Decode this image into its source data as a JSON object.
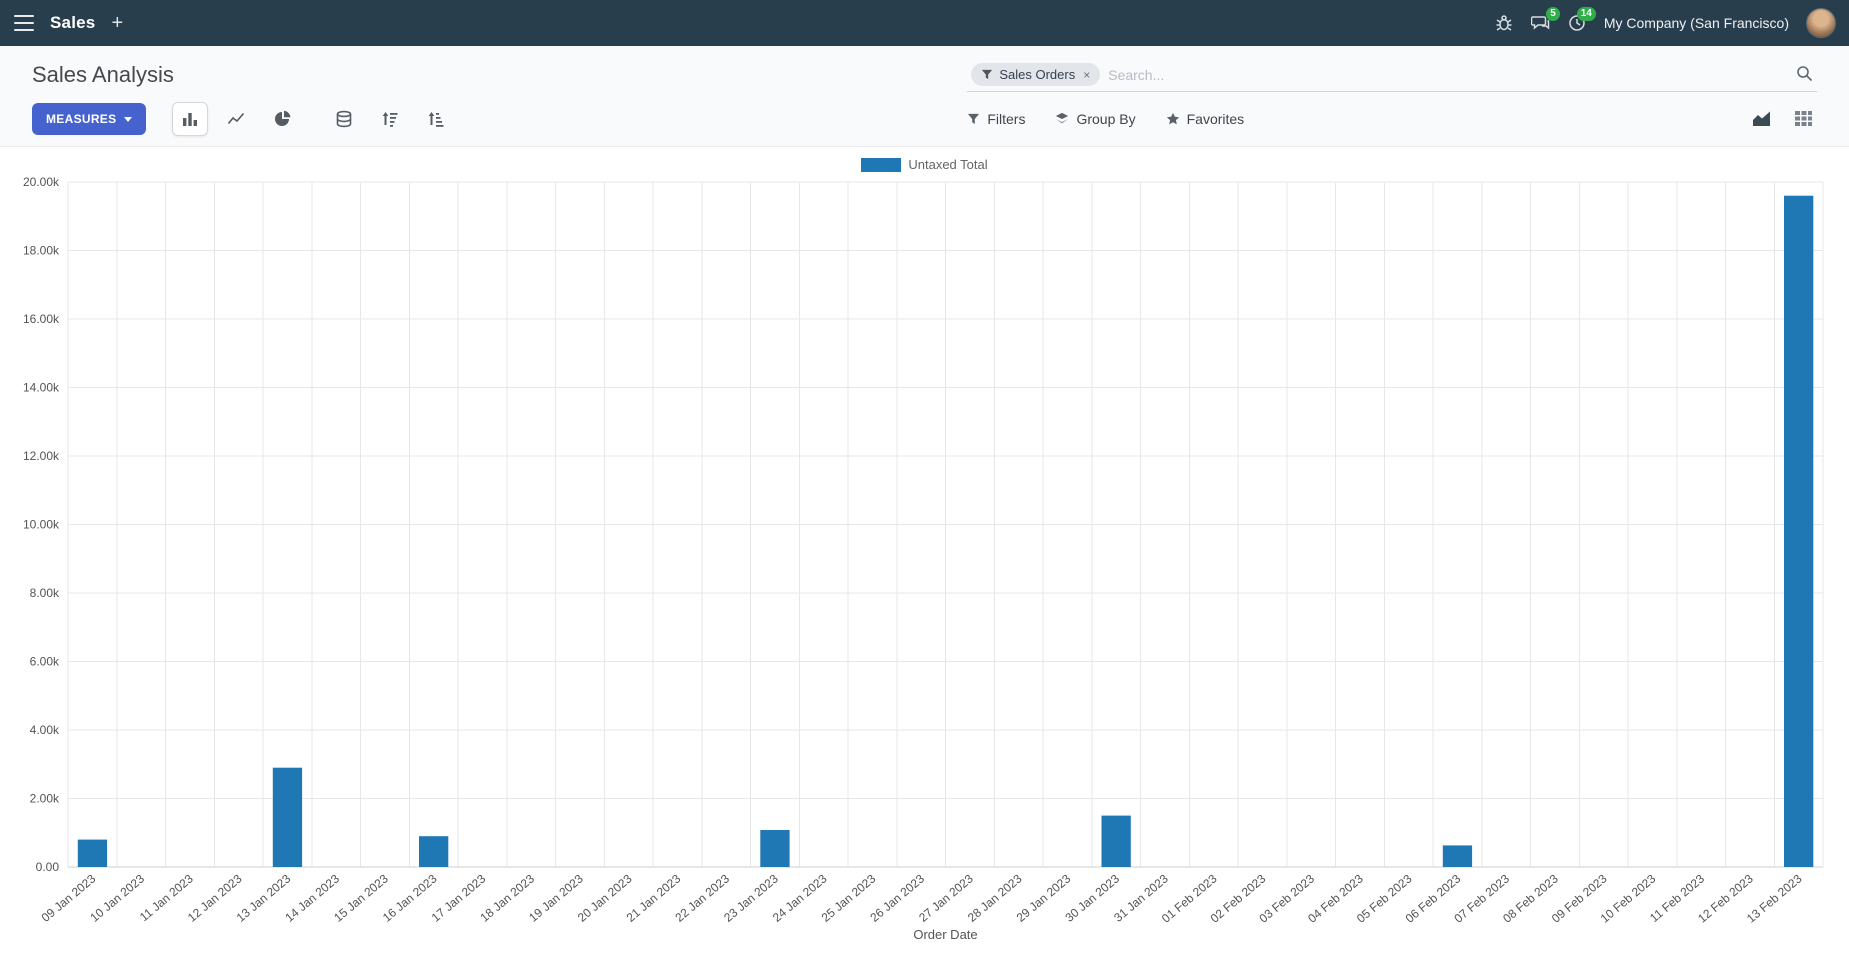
{
  "topbar": {
    "app": "Sales",
    "plus": "+",
    "chat_badge": "5",
    "activity_badge": "14",
    "company": "My Company (San Francisco)"
  },
  "control_panel": {
    "title": "Sales Analysis",
    "measures": "MEASURES",
    "filters": "Filters",
    "group_by": "Group By",
    "favorites": "Favorites",
    "search": {
      "facet_label": "Sales Orders",
      "facet_remove": "×",
      "placeholder": "Search..."
    }
  },
  "colors": {
    "bar": "#1f77b4",
    "topbar_bg": "#283e4d",
    "primary_button": "#4562cf",
    "badge_green": "#2fae49",
    "grid": "#e7e7e7"
  },
  "chart_data": {
    "type": "bar",
    "title": "",
    "legend_position": "top",
    "grid": true,
    "xlabel": "Order Date",
    "ylabel": "",
    "ylim": [
      0,
      20000
    ],
    "ytick_labels": [
      "0.00",
      "2.00k",
      "4.00k",
      "6.00k",
      "8.00k",
      "10.00k",
      "12.00k",
      "14.00k",
      "16.00k",
      "18.00k",
      "20.00k"
    ],
    "categories": [
      "09 Jan 2023",
      "10 Jan 2023",
      "11 Jan 2023",
      "12 Jan 2023",
      "13 Jan 2023",
      "14 Jan 2023",
      "15 Jan 2023",
      "16 Jan 2023",
      "17 Jan 2023",
      "18 Jan 2023",
      "19 Jan 2023",
      "20 Jan 2023",
      "21 Jan 2023",
      "22 Jan 2023",
      "23 Jan 2023",
      "24 Jan 2023",
      "25 Jan 2023",
      "26 Jan 2023",
      "27 Jan 2023",
      "28 Jan 2023",
      "29 Jan 2023",
      "30 Jan 2023",
      "31 Jan 2023",
      "01 Feb 2023",
      "02 Feb 2023",
      "03 Feb 2023",
      "04 Feb 2023",
      "05 Feb 2023",
      "06 Feb 2023",
      "07 Feb 2023",
      "08 Feb 2023",
      "09 Feb 2023",
      "10 Feb 2023",
      "11 Feb 2023",
      "12 Feb 2023",
      "13 Feb 2023"
    ],
    "series": [
      {
        "name": "Untaxed Total",
        "color": "#1f77b4",
        "values": [
          800,
          0,
          0,
          0,
          2900,
          0,
          0,
          900,
          0,
          0,
          0,
          0,
          0,
          0,
          1080,
          0,
          0,
          0,
          0,
          0,
          0,
          1500,
          0,
          0,
          0,
          0,
          0,
          0,
          630,
          0,
          0,
          0,
          0,
          0,
          0,
          19600
        ]
      }
    ]
  }
}
